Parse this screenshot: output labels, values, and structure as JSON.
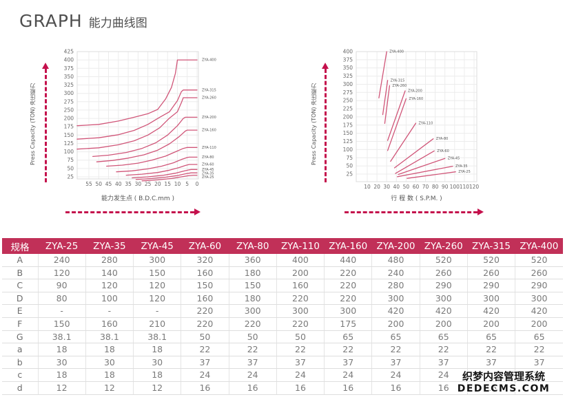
{
  "title": {
    "en": "GRAPH",
    "zh": "能力曲线图"
  },
  "colors": {
    "accent": "#c13058",
    "curve": "#d05578",
    "arrow": "#c4104c"
  },
  "watermark": {
    "line1": "织梦内容管理系统",
    "line2": "DEDECMS.COM"
  },
  "chart_data": [
    {
      "type": "line",
      "title": "",
      "xlabel": "能力发生点 ( B.D.C.mm )",
      "ylabel": "Press Capacity (TON) 冲压能力",
      "x_ticks": [
        55,
        50,
        45,
        40,
        35,
        30,
        25,
        20,
        15,
        10,
        5,
        0
      ],
      "x_reversed": true,
      "y_ticks": [
        425,
        400,
        375,
        350,
        325,
        300,
        275,
        250,
        200,
        175,
        150,
        125,
        100,
        75,
        50,
        25
      ],
      "grid": true,
      "legend_position": "right-of-plot",
      "series": [
        {
          "name": "ZYA-400",
          "points": [
            [
              61,
              178
            ],
            [
              50,
              182
            ],
            [
              40,
              192
            ],
            [
              32,
              207
            ],
            [
              25,
              228
            ],
            [
              20,
              252
            ],
            [
              16,
              283
            ],
            [
              13,
              318
            ],
            [
              11,
              360
            ],
            [
              10,
              400
            ],
            [
              0,
              400
            ]
          ]
        },
        {
          "name": "ZYA-315",
          "points": [
            [
              61,
              138
            ],
            [
              50,
              142
            ],
            [
              40,
              151
            ],
            [
              32,
              164
            ],
            [
              25,
              182
            ],
            [
              19,
              207
            ],
            [
              14,
              240
            ],
            [
              10,
              278
            ],
            [
              8,
              305
            ],
            [
              7,
              310
            ],
            [
              0,
              310
            ]
          ]
        },
        {
          "name": "ZYA-260",
          "points": [
            [
              61,
              108
            ],
            [
              50,
              112
            ],
            [
              40,
              121
            ],
            [
              32,
              133
            ],
            [
              25,
              150
            ],
            [
              19,
              172
            ],
            [
              14,
              202
            ],
            [
              10,
              240
            ],
            [
              8,
              272
            ],
            [
              7,
              287
            ],
            [
              0,
              287
            ]
          ]
        },
        {
          "name": "ZYA-200",
          "points": [
            [
              53,
              86
            ],
            [
              45,
              90
            ],
            [
              36,
              98
            ],
            [
              28,
              110
            ],
            [
              21,
              127
            ],
            [
              15,
              150
            ],
            [
              10,
              178
            ],
            [
              7,
              200
            ],
            [
              6,
              207
            ],
            [
              0,
              207
            ]
          ]
        },
        {
          "name": "ZYA-160",
          "points": [
            [
              51,
              70
            ],
            [
              43,
              74
            ],
            [
              35,
              81
            ],
            [
              27,
              91
            ],
            [
              20,
              105
            ],
            [
              14,
              124
            ],
            [
              9,
              146
            ],
            [
              6,
              162
            ],
            [
              5,
              165
            ],
            [
              0,
              165
            ]
          ]
        },
        {
          "name": "ZYA-110",
          "points": [
            [
              46,
              57
            ],
            [
              38,
              60
            ],
            [
              30,
              66
            ],
            [
              23,
              75
            ],
            [
              16,
              87
            ],
            [
              11,
              100
            ],
            [
              7,
              110
            ],
            [
              5,
              113
            ],
            [
              0,
              113
            ]
          ]
        },
        {
          "name": "ZYA-80",
          "points": [
            [
              41,
              40
            ],
            [
              33,
              43
            ],
            [
              25,
              49
            ],
            [
              18,
              57
            ],
            [
              12,
              67
            ],
            [
              8,
              77
            ],
            [
              5,
              83
            ],
            [
              4,
              84
            ],
            [
              0,
              84
            ]
          ]
        },
        {
          "name": "ZYA-60",
          "points": [
            [
              36,
              30
            ],
            [
              28,
              33
            ],
            [
              20,
              38
            ],
            [
              14,
              45
            ],
            [
              9,
              53
            ],
            [
              6,
              59
            ],
            [
              4,
              62
            ],
            [
              0,
              62
            ]
          ]
        },
        {
          "name": "ZYA-45",
          "points": [
            [
              33,
              22
            ],
            [
              25,
              25
            ],
            [
              17,
              30
            ],
            [
              11,
              36
            ],
            [
              7,
              42
            ],
            [
              4,
              46
            ],
            [
              3,
              47
            ],
            [
              0,
              47
            ]
          ]
        },
        {
          "name": "ZYA-35",
          "points": [
            [
              31,
              17
            ],
            [
              23,
              20
            ],
            [
              16,
              24
            ],
            [
              10,
              29
            ],
            [
              6,
              34
            ],
            [
              3,
              37
            ],
            [
              0,
              37
            ]
          ]
        },
        {
          "name": "ZYA-25",
          "points": [
            [
              28,
              13
            ],
            [
              20,
              16
            ],
            [
              13,
              20
            ],
            [
              8,
              25
            ],
            [
              4,
              29
            ],
            [
              2,
              30
            ],
            [
              0,
              30
            ]
          ]
        }
      ]
    },
    {
      "type": "line",
      "title": "",
      "xlabel": "行 程 数 ( S.P.M. )",
      "ylabel": "Press Capacity (TON) 冲压能力",
      "x_ticks": [
        10,
        20,
        30,
        40,
        50,
        60,
        70,
        80,
        90,
        100,
        110,
        120
      ],
      "x_reversed": false,
      "y_ticks": [
        400,
        375,
        350,
        325,
        300,
        275,
        250,
        225,
        200,
        175,
        150,
        125,
        100,
        75,
        50,
        25
      ],
      "grid": true,
      "legend_position": "at-line-end",
      "series": [
        {
          "name": "ZYA-400",
          "points": [
            [
              22,
              258
            ],
            [
              30,
              406
            ]
          ]
        },
        {
          "name": "ZYA-315",
          "points": [
            [
              26,
              207
            ],
            [
              31,
              312
            ]
          ]
        },
        {
          "name": "ZYA-260",
          "points": [
            [
              28,
              180
            ],
            [
              33,
              296
            ]
          ]
        },
        {
          "name": "ZYA-200",
          "points": [
            [
              31,
              128
            ],
            [
              49,
              280
            ]
          ]
        },
        {
          "name": "ZYA-160",
          "points": [
            [
              31,
              97
            ],
            [
              50,
              256
            ]
          ]
        },
        {
          "name": "ZYA-110",
          "points": [
            [
              34,
              64
            ],
            [
              60,
              181
            ]
          ]
        },
        {
          "name": "ZYA-80",
          "points": [
            [
              38,
              44
            ],
            [
              78,
              133
            ]
          ]
        },
        {
          "name": "ZYA-60",
          "points": [
            [
              39,
              27
            ],
            [
              79,
              96
            ]
          ]
        },
        {
          "name": "ZYA-45",
          "points": [
            [
              42,
              24
            ],
            [
              90,
              73
            ]
          ]
        },
        {
          "name": "ZYA-35",
          "points": [
            [
              41,
              17
            ],
            [
              98,
              49
            ]
          ]
        },
        {
          "name": "ZYA-25",
          "points": [
            [
              51,
              12
            ],
            [
              101,
              32
            ]
          ]
        }
      ]
    },
    {
      "type": "table",
      "headers": [
        "规格",
        "ZYA-25",
        "ZYA-35",
        "ZYA-45",
        "ZYA-60",
        "ZYA-80",
        "ZYA-110",
        "ZYA-160",
        "ZYA-200",
        "ZYA-260",
        "ZYA-315",
        "ZYA-400"
      ],
      "rows": [
        {
          "label": "A",
          "values": [
            "240",
            "280",
            "300",
            "320",
            "360",
            "400",
            "440",
            "480",
            "520",
            "520",
            "520"
          ]
        },
        {
          "label": "B",
          "values": [
            "120",
            "140",
            "150",
            "160",
            "180",
            "200",
            "220",
            "240",
            "260",
            "260",
            "260"
          ]
        },
        {
          "label": "C",
          "values": [
            "90",
            "120",
            "120",
            "150",
            "150",
            "160",
            "220",
            "280",
            "290",
            "290",
            "290"
          ]
        },
        {
          "label": "D",
          "values": [
            "80",
            "100",
            "120",
            "160",
            "180",
            "220",
            "220",
            "300",
            "300",
            "300",
            "300"
          ]
        },
        {
          "label": "E",
          "values": [
            "-",
            "-",
            "-",
            "220",
            "300",
            "300",
            "300",
            "420",
            "420",
            "420",
            "420"
          ]
        },
        {
          "label": "F",
          "values": [
            "150",
            "160",
            "210",
            "220",
            "220",
            "220",
            "175",
            "200",
            "200",
            "200",
            "200"
          ]
        },
        {
          "label": "G",
          "values": [
            "38.1",
            "38.1",
            "38.1",
            "50",
            "50",
            "50",
            "65",
            "65",
            "65",
            "65",
            "65"
          ]
        },
        {
          "label": "a",
          "values": [
            "18",
            "18",
            "18",
            "22",
            "22",
            "22",
            "22",
            "22",
            "22",
            "22",
            "22"
          ]
        },
        {
          "label": "b",
          "values": [
            "30",
            "30",
            "30",
            "37",
            "37",
            "37",
            "37",
            "37",
            "37",
            "37",
            "37"
          ]
        },
        {
          "label": "c",
          "values": [
            "18",
            "18",
            "18",
            "24",
            "24",
            "24",
            "24",
            "24",
            "24",
            "24",
            "24"
          ]
        },
        {
          "label": "d",
          "values": [
            "12",
            "12",
            "12",
            "16",
            "16",
            "16",
            "16",
            "16",
            "16",
            "16",
            "16"
          ]
        }
      ]
    }
  ]
}
